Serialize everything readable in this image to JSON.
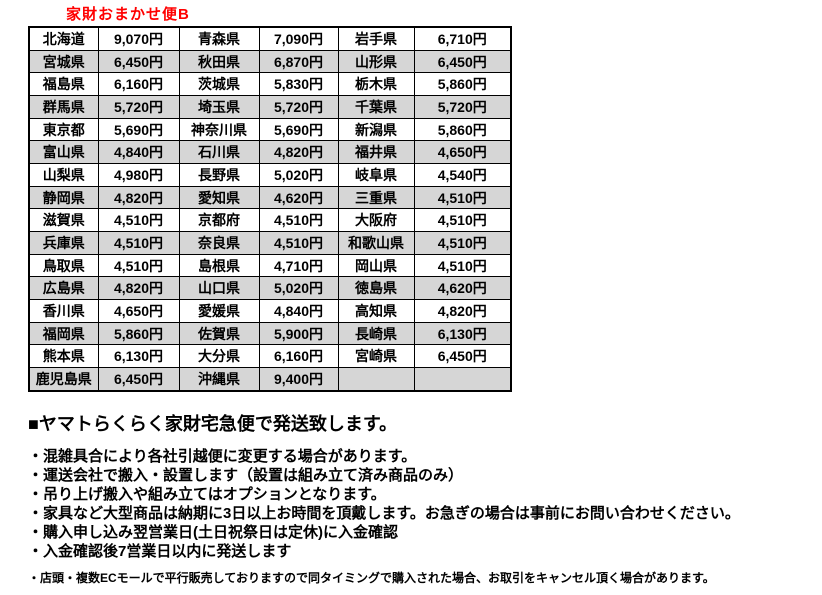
{
  "title": "家財おまかせ便B",
  "table": {
    "rows": [
      [
        "北海道",
        "9,070円",
        "青森県",
        "7,090円",
        "岩手県",
        "6,710円"
      ],
      [
        "宮城県",
        "6,450円",
        "秋田県",
        "6,870円",
        "山形県",
        "6,450円"
      ],
      [
        "福島県",
        "6,160円",
        "茨城県",
        "5,830円",
        "栃木県",
        "5,860円"
      ],
      [
        "群馬県",
        "5,720円",
        "埼玉県",
        "5,720円",
        "千葉県",
        "5,720円"
      ],
      [
        "東京都",
        "5,690円",
        "神奈川県",
        "5,690円",
        "新潟県",
        "5,860円"
      ],
      [
        "富山県",
        "4,840円",
        "石川県",
        "4,820円",
        "福井県",
        "4,650円"
      ],
      [
        "山梨県",
        "4,980円",
        "長野県",
        "5,020円",
        "岐阜県",
        "4,540円"
      ],
      [
        "静岡県",
        "4,820円",
        "愛知県",
        "4,620円",
        "三重県",
        "4,510円"
      ],
      [
        "滋賀県",
        "4,510円",
        "京都府",
        "4,510円",
        "大阪府",
        "4,510円"
      ],
      [
        "兵庫県",
        "4,510円",
        "奈良県",
        "4,510円",
        "和歌山県",
        "4,510円"
      ],
      [
        "鳥取県",
        "4,510円",
        "島根県",
        "4,710円",
        "岡山県",
        "4,510円"
      ],
      [
        "広島県",
        "4,820円",
        "山口県",
        "5,020円",
        "徳島県",
        "4,620円"
      ],
      [
        "香川県",
        "4,650円",
        "愛媛県",
        "4,840円",
        "高知県",
        "4,820円"
      ],
      [
        "福岡県",
        "5,860円",
        "佐賀県",
        "5,900円",
        "長崎県",
        "6,130円"
      ],
      [
        "熊本県",
        "6,130円",
        "大分県",
        "6,160円",
        "宮崎県",
        "6,450円"
      ],
      [
        "鹿児島県",
        "6,450円",
        "沖縄県",
        "9,400円",
        "",
        ""
      ]
    ]
  },
  "notes": {
    "heading": "■ヤマトらくらく家財宅急便で発送致します。",
    "bullets": [
      "・混雑具合により各社引越便に変更する場合があります。",
      "・運送会社で搬入・設置します（設置は組み立て済み商品のみ）",
      "・吊り上げ搬入や組み立てはオプションとなります。",
      "・家具など大型商品は納期に3日以上お時間を頂戴します。お急ぎの場合は事前にお問い合わせください。",
      "・購入申し込み翌営業日(土日祝祭日は定休)に入金確認",
      "・入金確認後7営業日以内に発送します"
    ],
    "small_note": "・店頭・複数ECモールで平行販売しておりますので同タイミングで購入された場合、お取引をキャンセル頂く場合があります。"
  },
  "colors": {
    "title_red": "#ff0000",
    "alt_row_gray": "#d6d6d6",
    "border_black": "#000000",
    "background": "#ffffff"
  }
}
